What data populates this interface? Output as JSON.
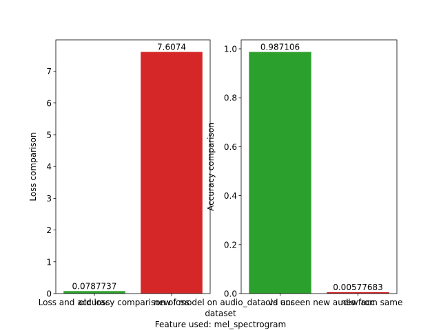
{
  "chart_data": [
    {
      "type": "bar",
      "categories": [
        "old loss",
        "new loss"
      ],
      "values": [
        0.0787737,
        7.6074
      ],
      "data_labels": [
        "0.0787737",
        "7.6074"
      ],
      "colors": [
        "#2ca02c",
        "#d62728"
      ],
      "title": "",
      "xlabel": "",
      "ylabel": "Loss comparison",
      "ylim": [
        0,
        7.987
      ],
      "yticks": [
        0,
        1,
        2,
        3,
        4,
        5,
        6,
        7
      ],
      "ytick_labels": [
        "0",
        "1",
        "2",
        "3",
        "4",
        "5",
        "6",
        "7"
      ],
      "grid": false
    },
    {
      "type": "bar",
      "categories": [
        "old acc",
        "new acc"
      ],
      "values": [
        0.987106,
        0.00577683
      ],
      "data_labels": [
        "0.987106",
        "0.00577683"
      ],
      "colors": [
        "#2ca02c",
        "#d62728"
      ],
      "title": "",
      "xlabel": "",
      "ylabel": "Accuracy comparison",
      "ylim": [
        0,
        1.0365
      ],
      "yticks": [
        0,
        0.2,
        0.4,
        0.6,
        0.8,
        1.0
      ],
      "ytick_labels": [
        "0.0",
        "0.2",
        "0.4",
        "0.6",
        "0.8",
        "1.0"
      ],
      "grid": false
    }
  ],
  "caption": {
    "line1": "Loss and accuracy comparison of model on audio_data vs unseen new audio from same",
    "line2": "dataset",
    "line3": "Feature used: mel_spectrogram"
  }
}
